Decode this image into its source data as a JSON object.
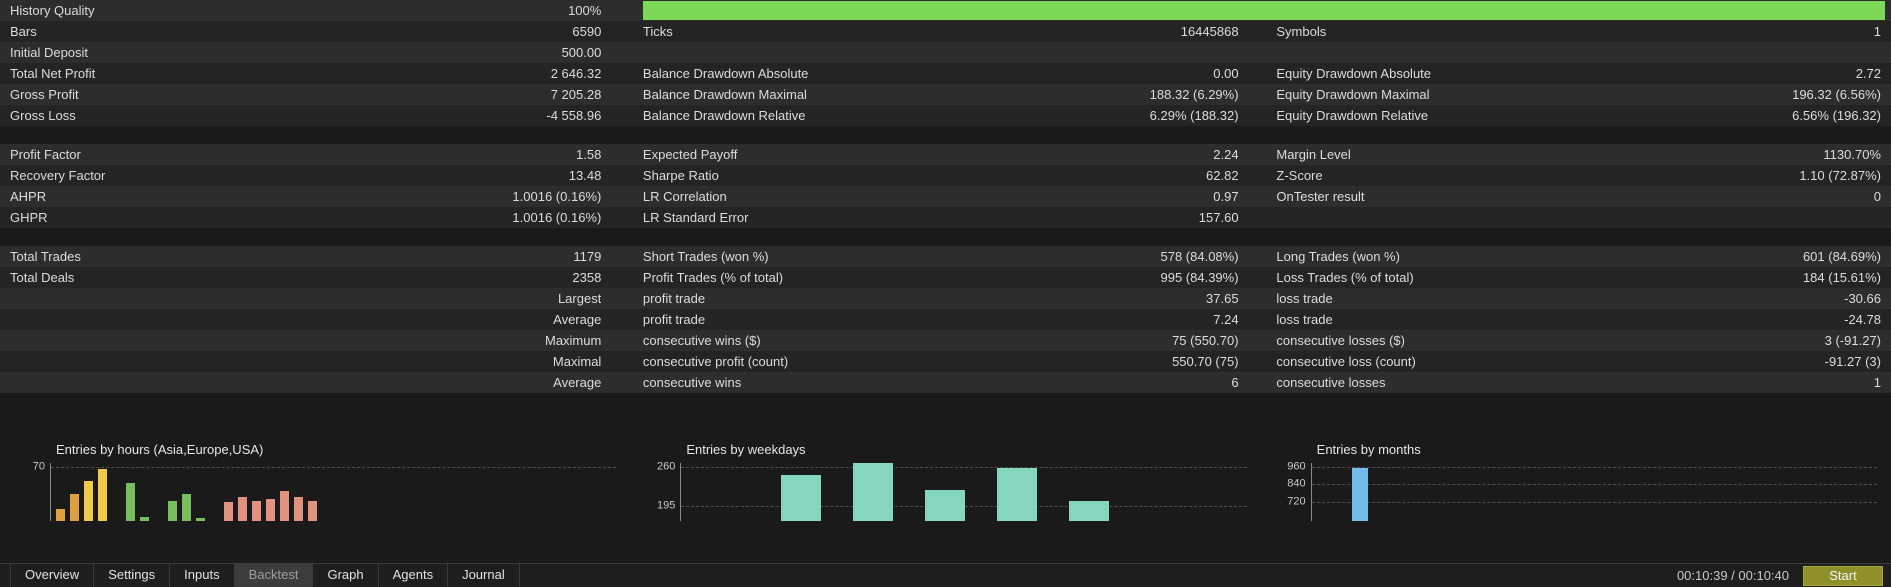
{
  "colors": {
    "quality_bar": "#7CD957",
    "orange": "#DFA042",
    "yellow": "#EFC94C",
    "green": "#79BE5E",
    "salmon": "#E2937F",
    "teal": "#84D7BE",
    "blue": "#72BBE8"
  },
  "table": {
    "rows": [
      {
        "type": "quality",
        "c1l": "History Quality",
        "c1v": "100%"
      },
      {
        "c1l": "Bars",
        "c1v": "6590",
        "c2l": "Ticks",
        "c2v": "16445868",
        "c3l": "Symbols",
        "c3v": "1"
      },
      {
        "c1l": "Initial Deposit",
        "c1v": "500.00",
        "c2l": "",
        "c2v": "",
        "c3l": "",
        "c3v": ""
      },
      {
        "c1l": "Total Net Profit",
        "c1v": "2 646.32",
        "c2l": "Balance Drawdown Absolute",
        "c2v": "0.00",
        "c3l": "Equity Drawdown Absolute",
        "c3v": "2.72"
      },
      {
        "c1l": "Gross Profit",
        "c1v": "7 205.28",
        "c2l": "Balance Drawdown Maximal",
        "c2v": "188.32 (6.29%)",
        "c3l": "Equity Drawdown Maximal",
        "c3v": "196.32 (6.56%)"
      },
      {
        "c1l": "Gross Loss",
        "c1v": "-4 558.96",
        "c2l": "Balance Drawdown Relative",
        "c2v": "6.29% (188.32)",
        "c3l": "Equity Drawdown Relative",
        "c3v": "6.56% (196.32)"
      },
      {
        "type": "spacer"
      },
      {
        "c1l": "Profit Factor",
        "c1v": "1.58",
        "c2l": "Expected Payoff",
        "c2v": "2.24",
        "c3l": "Margin Level",
        "c3v": "1130.70%"
      },
      {
        "c1l": "Recovery Factor",
        "c1v": "13.48",
        "c2l": "Sharpe Ratio",
        "c2v": "62.82",
        "c3l": "Z-Score",
        "c3v": "1.10 (72.87%)"
      },
      {
        "c1l": "AHPR",
        "c1v": "1.0016 (0.16%)",
        "c2l": "LR Correlation",
        "c2v": "0.97",
        "c3l": "OnTester result",
        "c3v": "0"
      },
      {
        "c1l": "GHPR",
        "c1v": "1.0016 (0.16%)",
        "c2l": "LR Standard Error",
        "c2v": "157.60",
        "c3l": "",
        "c3v": ""
      },
      {
        "type": "spacer"
      },
      {
        "c1l": "Total Trades",
        "c1v": "1179",
        "c2l": "Short Trades (won %)",
        "c2v": "578 (84.08%)",
        "c3l": "Long Trades (won %)",
        "c3v": "601 (84.69%)"
      },
      {
        "c1l": "Total Deals",
        "c1v": "2358",
        "c2l": "Profit Trades (% of total)",
        "c2v": "995 (84.39%)",
        "c3l": "Loss Trades (% of total)",
        "c3v": "184 (15.61%)"
      },
      {
        "c1l": "",
        "c1v": "Largest",
        "c2l": "profit trade",
        "c2v": "37.65",
        "c3l": "loss trade",
        "c3v": "-30.66"
      },
      {
        "c1l": "",
        "c1v": "Average",
        "c2l": "profit trade",
        "c2v": "7.24",
        "c3l": "loss trade",
        "c3v": "-24.78"
      },
      {
        "c1l": "",
        "c1v": "Maximum",
        "c2l": "consecutive wins ($)",
        "c2v": "75 (550.70)",
        "c3l": "consecutive losses ($)",
        "c3v": "3 (-91.27)"
      },
      {
        "c1l": "",
        "c1v": "Maximal",
        "c2l": "consecutive profit (count)",
        "c2v": "550.70 (75)",
        "c3l": "consecutive loss (count)",
        "c3v": "-91.27 (3)"
      },
      {
        "c1l": "",
        "c1v": "Average",
        "c2l": "consecutive wins",
        "c2v": "6",
        "c3l": "consecutive losses",
        "c3v": "1"
      }
    ]
  },
  "chart_data": [
    {
      "type": "bar",
      "title": "Entries by hours (Asia,Europe,USA)",
      "x": [
        0,
        1,
        2,
        3,
        4,
        5,
        6,
        7,
        8,
        9,
        10,
        11,
        12,
        13,
        14,
        15,
        16,
        17,
        18,
        19,
        20,
        21,
        22,
        23
      ],
      "values": [
        18,
        36,
        52,
        68,
        0,
        50,
        8,
        0,
        28,
        36,
        6,
        0,
        26,
        33,
        28,
        30,
        40,
        33,
        28,
        0,
        0,
        0,
        0,
        0
      ],
      "colors": [
        "#DFA042",
        "#DFA042",
        "#EFC94C",
        "#EFC94C",
        null,
        "#79BE5E",
        "#79BE5E",
        null,
        "#79BE5E",
        "#79BE5E",
        "#79BE5E",
        null,
        "#E2937F",
        "#E2937F",
        "#E2937F",
        "#E2937F",
        "#E2937F",
        "#E2937F",
        "#E2937F",
        null,
        null,
        null,
        null,
        null
      ],
      "yticks": [
        {
          "label": "70",
          "value": 70
        }
      ],
      "ylabel": "",
      "xlabel": "",
      "grid": "dashed",
      "baseline_clipped": true
    },
    {
      "type": "bar",
      "title": "Entries by weekdays",
      "values": [
        246,
        268,
        221,
        258,
        203
      ],
      "color": "#84D7BE",
      "yticks": [
        {
          "label": "260",
          "value": 260
        },
        {
          "label": "195",
          "value": 195
        }
      ],
      "ylabel": "",
      "xlabel": "",
      "grid": "dashed",
      "baseline_clipped": true
    },
    {
      "type": "bar",
      "title": "Entries by months",
      "values": [
        950
      ],
      "color": "#72BBE8",
      "yticks": [
        {
          "label": "960",
          "value": 960
        },
        {
          "label": "840",
          "value": 840
        },
        {
          "label": "720",
          "value": 720
        }
      ],
      "ylabel": "",
      "xlabel": "",
      "grid": "dashed",
      "baseline_clipped": true
    }
  ],
  "tabs": {
    "items": [
      {
        "label": "Overview",
        "active": false
      },
      {
        "label": "Settings",
        "active": false
      },
      {
        "label": "Inputs",
        "active": false
      },
      {
        "label": "Backtest",
        "active": true
      },
      {
        "label": "Graph",
        "active": false
      },
      {
        "label": "Agents",
        "active": false
      },
      {
        "label": "Journal",
        "active": false
      }
    ]
  },
  "statusbar": {
    "time": "00:10:39 / 00:10:40",
    "start_label": "Start"
  }
}
